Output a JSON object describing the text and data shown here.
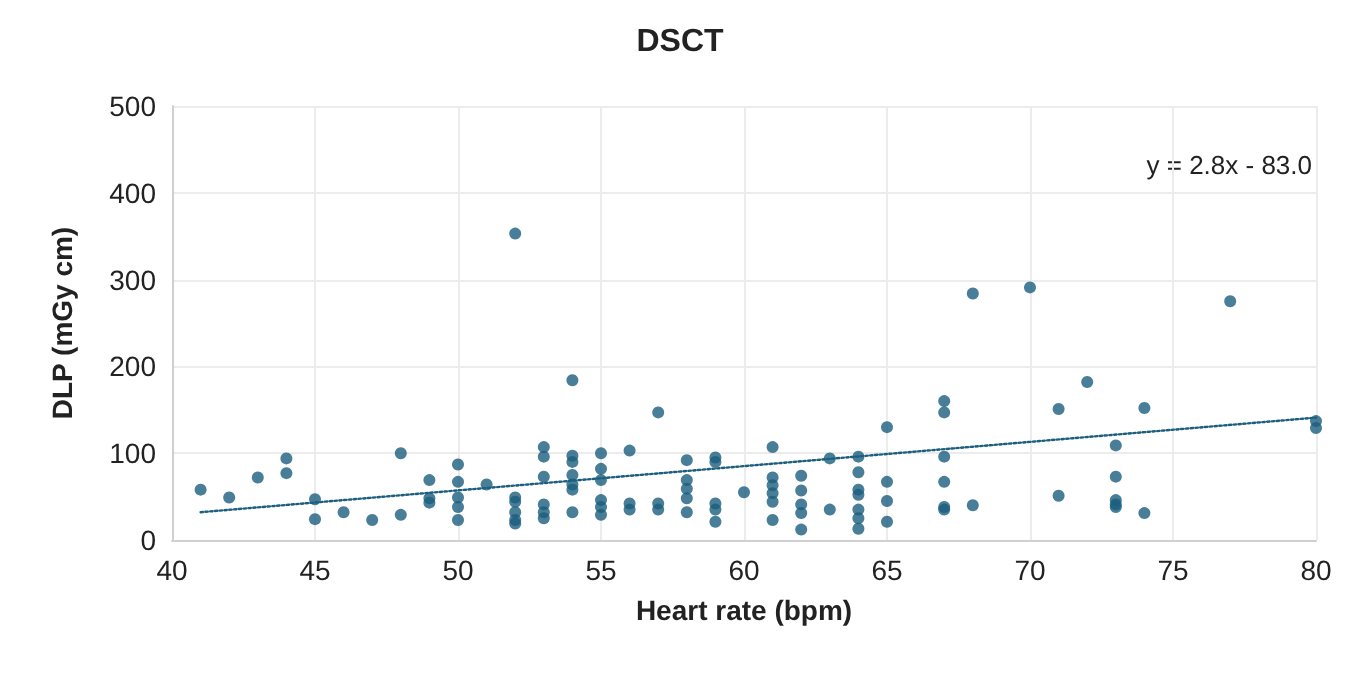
{
  "chart_data": {
    "type": "scatter",
    "title": "DSCT",
    "xlabel": "Heart rate (bpm)",
    "ylabel": "DLP (mGy cm)",
    "xlim": [
      40,
      80
    ],
    "xticks": [
      40,
      45,
      50,
      55,
      60,
      65,
      70,
      75,
      80
    ],
    "ylim": [
      0,
      500
    ],
    "yticks": [
      0,
      100,
      200,
      300,
      400,
      500
    ],
    "grid": true,
    "marker": "circle",
    "annotations": [
      "y = 2.8x - 83.0"
    ],
    "series": [
      {
        "color": "#1b5e7e",
        "x": [
          41,
          42,
          43,
          44,
          44,
          45,
          45,
          46,
          47,
          48,
          48,
          49,
          49,
          49,
          50,
          50,
          50,
          50,
          50,
          51,
          52,
          52,
          52,
          52,
          52,
          52,
          53,
          53,
          53,
          53,
          53,
          53,
          54,
          54,
          54,
          54,
          54,
          54,
          54,
          55,
          55,
          55,
          55,
          55,
          55,
          56,
          56,
          56,
          57,
          57,
          57,
          58,
          58,
          58,
          58,
          58,
          59,
          59,
          59,
          59,
          59,
          60,
          61,
          61,
          61,
          61,
          61,
          61,
          62,
          62,
          62,
          62,
          62,
          63,
          63,
          64,
          64,
          64,
          64,
          64,
          64,
          64,
          65,
          65,
          65,
          65,
          67,
          67,
          67,
          67,
          67,
          67,
          68,
          68,
          70,
          71,
          71,
          72,
          73,
          73,
          73,
          73,
          73,
          74,
          74,
          77,
          80,
          80
        ],
        "values": [
          58,
          49,
          72,
          94,
          77,
          47,
          24,
          32,
          23,
          100,
          29,
          69,
          48,
          43,
          87,
          67,
          49,
          38,
          23,
          64,
          353,
          49,
          44,
          32,
          23,
          19,
          107,
          96,
          73,
          41,
          32,
          25,
          184,
          97,
          90,
          75,
          64,
          58,
          32,
          100,
          82,
          69,
          46,
          38,
          29,
          103,
          42,
          35,
          147,
          42,
          35,
          92,
          69,
          59,
          48,
          32,
          95,
          90,
          42,
          35,
          21,
          55,
          107,
          72,
          63,
          54,
          44,
          23,
          74,
          57,
          41,
          31,
          12,
          94,
          35,
          96,
          78,
          58,
          52,
          35,
          25,
          13,
          130,
          67,
          45,
          21,
          160,
          147,
          96,
          67,
          35,
          38,
          284,
          40,
          291,
          151,
          51,
          182,
          109,
          73,
          46,
          41,
          38,
          152,
          31,
          275,
          137,
          129
        ]
      },
      {
        "type": "line",
        "color": "#1b5e7e",
        "marker": "none",
        "line_style": "dotted",
        "x": [
          41,
          80
        ],
        "values": [
          32,
          141
        ]
      }
    ]
  }
}
